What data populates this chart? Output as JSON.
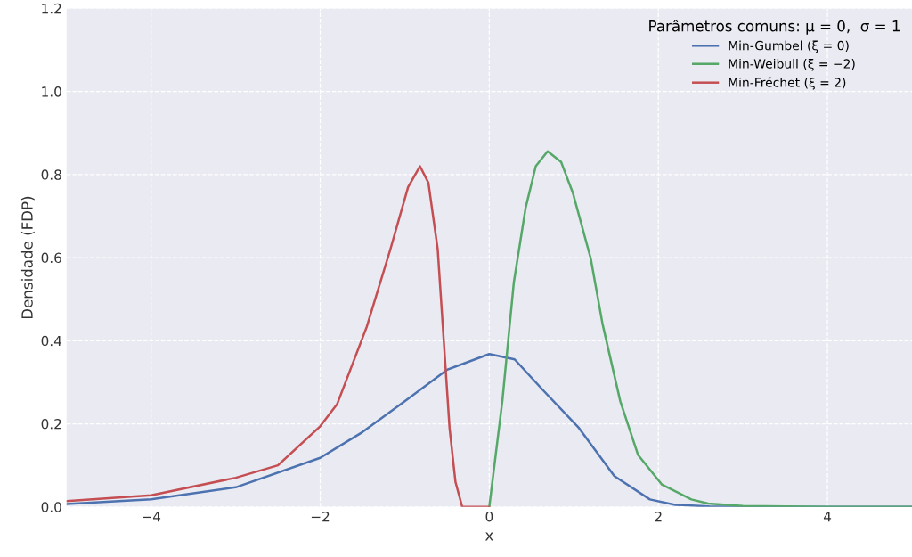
{
  "chart_data": {
    "type": "line",
    "xlabel": "x",
    "ylabel": "Densidade (FDP)",
    "legend_title": "Parâmetros comuns: μ = 0,  σ = 1",
    "legend": "top right",
    "grid": true,
    "line_style": "solid",
    "xlim": [
      -5,
      5
    ],
    "xticks": [
      -4,
      -2,
      0,
      2,
      4
    ],
    "ylim": [
      0,
      1.2
    ],
    "yticks": [
      {
        "value": 0,
        "label": "0.0"
      },
      {
        "value": 0.2,
        "label": "0.2"
      },
      {
        "value": 0.4,
        "label": "0.4"
      },
      {
        "value": 0.6,
        "label": "0.6"
      },
      {
        "value": 0.8,
        "label": "0.8"
      },
      {
        "value": 1,
        "label": "1.0"
      },
      {
        "value": 1.2,
        "label": "1.2"
      }
    ],
    "series": [
      {
        "name": "Min-Gumbel (ξ = 0)",
        "color": "#4c72b0",
        "x": [
          -5,
          -4,
          -3,
          -2,
          -1.5,
          -1,
          -0.5,
          0,
          0.3,
          0.64,
          1.06,
          1.48,
          1.9,
          2.2,
          2.6,
          3,
          4,
          5
        ],
        "values": [
          0.007,
          0.018,
          0.047,
          0.118,
          0.18,
          0.254,
          0.33,
          0.368,
          0.355,
          0.28,
          0.19,
          0.074,
          0.018,
          0.005,
          0.001,
          0,
          0,
          0
        ]
      },
      {
        "name": "Min-Weibull (ξ = −2)",
        "color": "#55a868",
        "x": [
          0,
          0.154,
          0.29,
          0.43,
          0.55,
          0.69,
          0.85,
          0.99,
          1.2,
          1.34,
          1.55,
          1.76,
          2.04,
          2.39,
          2.59,
          3,
          4,
          5
        ],
        "values": [
          0,
          0.254,
          0.54,
          0.72,
          0.82,
          0.856,
          0.83,
          0.755,
          0.598,
          0.44,
          0.254,
          0.125,
          0.054,
          0.018,
          0.008,
          0.002,
          0,
          0
        ]
      },
      {
        "name": "Min-Fréchet (ξ = 2)",
        "color": "#c44e52",
        "x": [
          -5,
          -4,
          -3,
          -2.5,
          -2,
          -1.8,
          -1.45,
          -1.17,
          -0.96,
          -0.82,
          -0.72,
          -0.61,
          -0.54,
          -0.47,
          -0.4,
          -0.32,
          0
        ],
        "values": [
          0.014,
          0.028,
          0.07,
          0.1,
          0.194,
          0.247,
          0.433,
          0.62,
          0.77,
          0.82,
          0.78,
          0.62,
          0.405,
          0.19,
          0.06,
          0,
          0
        ]
      }
    ]
  }
}
